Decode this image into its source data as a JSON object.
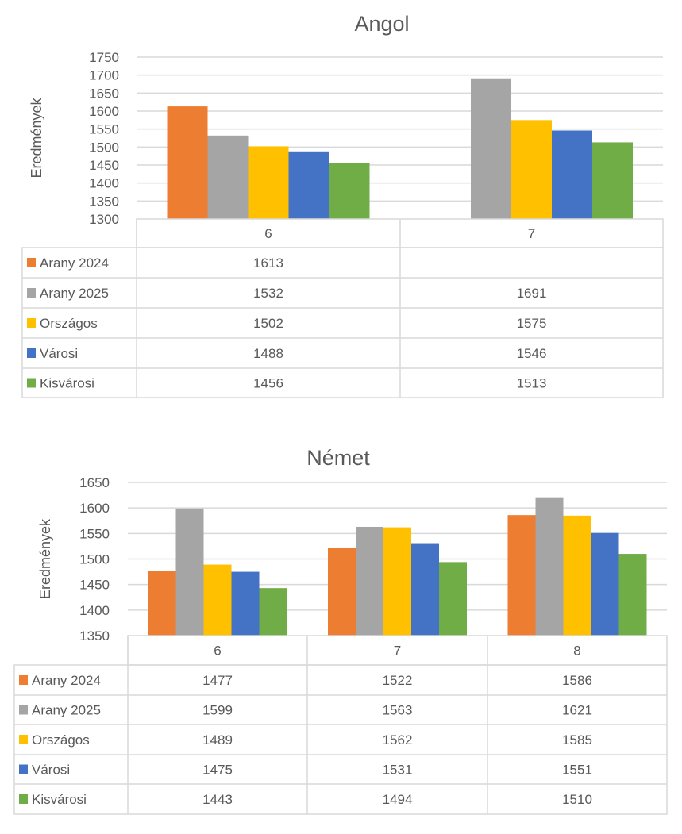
{
  "chart_data": [
    {
      "type": "bar",
      "title": "Angol",
      "xlabel": "",
      "ylabel": "Eredmények",
      "ylim": [
        1300,
        1750
      ],
      "ytick_step": 50,
      "yticks": [
        "1300",
        "1350",
        "1400",
        "1450",
        "1500",
        "1550",
        "1600",
        "1650",
        "1700",
        "1750"
      ],
      "grid": true,
      "legend": "data-table",
      "categories": [
        "6",
        "7"
      ],
      "series": [
        {
          "name": "Arany 2024",
          "color": "#ED7D31",
          "values": [
            1613,
            null
          ]
        },
        {
          "name": "Arany 2025",
          "color": "#A5A5A5",
          "values": [
            1532,
            1691
          ]
        },
        {
          "name": "Országos",
          "color": "#FFC000",
          "values": [
            1502,
            1575
          ]
        },
        {
          "name": "Városi",
          "color": "#4472C4",
          "values": [
            1488,
            1546
          ]
        },
        {
          "name": "Kisvárosi",
          "color": "#70AD47",
          "values": [
            1456,
            1513
          ]
        }
      ]
    },
    {
      "type": "bar",
      "title": "Német",
      "xlabel": "",
      "ylabel": "Eredmények",
      "ylim": [
        1350,
        1650
      ],
      "ytick_step": 50,
      "yticks": [
        "1350",
        "1400",
        "1450",
        "1500",
        "1550",
        "1600",
        "1650"
      ],
      "grid": true,
      "legend": "data-table",
      "categories": [
        "6",
        "7",
        "8"
      ],
      "series": [
        {
          "name": "Arany 2024",
          "color": "#ED7D31",
          "values": [
            1477,
            1522,
            1586
          ]
        },
        {
          "name": "Arany 2025",
          "color": "#A5A5A5",
          "values": [
            1599,
            1563,
            1621
          ]
        },
        {
          "name": "Országos",
          "color": "#FFC000",
          "values": [
            1489,
            1562,
            1585
          ]
        },
        {
          "name": "Városi",
          "color": "#4472C4",
          "values": [
            1475,
            1531,
            1551
          ]
        },
        {
          "name": "Kisvárosi",
          "color": "#70AD47",
          "values": [
            1443,
            1494,
            1510
          ]
        }
      ]
    }
  ]
}
